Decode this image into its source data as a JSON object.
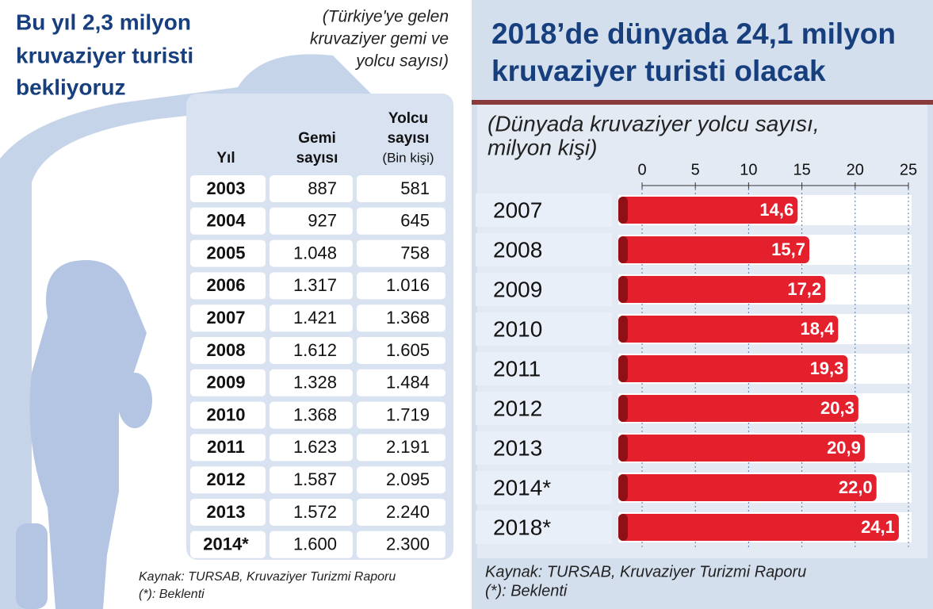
{
  "table": {
    "title": [
      "Bu yıl 2,3 milyon",
      "kruvaziyer turisti",
      "bekliyoruz"
    ],
    "subtitle": [
      "(Türkiye'ye gelen",
      "kruvaziyer gemi ve",
      "yolcu sayısı)"
    ],
    "columns": [
      [
        "Yıl"
      ],
      [
        "Gemi",
        "sayısı"
      ],
      [
        "Yolcu",
        "sayısı",
        "(Bin kişi)"
      ]
    ],
    "rows": [
      [
        "2003",
        "887",
        "581"
      ],
      [
        "2004",
        "927",
        "645"
      ],
      [
        "2005",
        "1.048",
        "758"
      ],
      [
        "2006",
        "1.317",
        "1.016"
      ],
      [
        "2007",
        "1.421",
        "1.368"
      ],
      [
        "2008",
        "1.612",
        "1.605"
      ],
      [
        "2009",
        "1.328",
        "1.484"
      ],
      [
        "2010",
        "1.368",
        "1.719"
      ],
      [
        "2011",
        "1.623",
        "2.191"
      ],
      [
        "2012",
        "1.587",
        "2.095"
      ],
      [
        "2013",
        "1.572",
        "2.240"
      ],
      [
        "2014*",
        "1.600",
        "2.300"
      ]
    ],
    "source": [
      "Kaynak: TURSAB, Kruvaziyer Turizmi Raporu",
      "(*): Beklenti"
    ]
  },
  "chart_data": {
    "type": "hbar",
    "title": [
      "2018’de dünyada 24,1 milyon",
      "kruvaziyer turisti olacak"
    ],
    "subtitle": [
      "(Dünyada kruvaziyer yolcu sayısı,",
      "milyon kişi)"
    ],
    "categories": [
      "2007",
      "2008",
      "2009",
      "2010",
      "2011",
      "2012",
      "2013",
      "2014*",
      "2018*"
    ],
    "values": [
      14.6,
      15.7,
      17.2,
      18.4,
      19.3,
      20.3,
      20.9,
      22.0,
      24.1
    ],
    "value_labels": [
      "14,6",
      "15,7",
      "17,2",
      "18,4",
      "19,3",
      "20,3",
      "20,9",
      "22,0",
      "24,1"
    ],
    "color": "#e3202c",
    "xlim": [
      0,
      25
    ],
    "xticks": [
      0,
      5,
      10,
      15,
      20,
      25
    ],
    "grid": true,
    "source": [
      "Kaynak: TURSAB, Kruvaziyer Turizmi Raporu",
      "(*): Beklenti"
    ]
  }
}
